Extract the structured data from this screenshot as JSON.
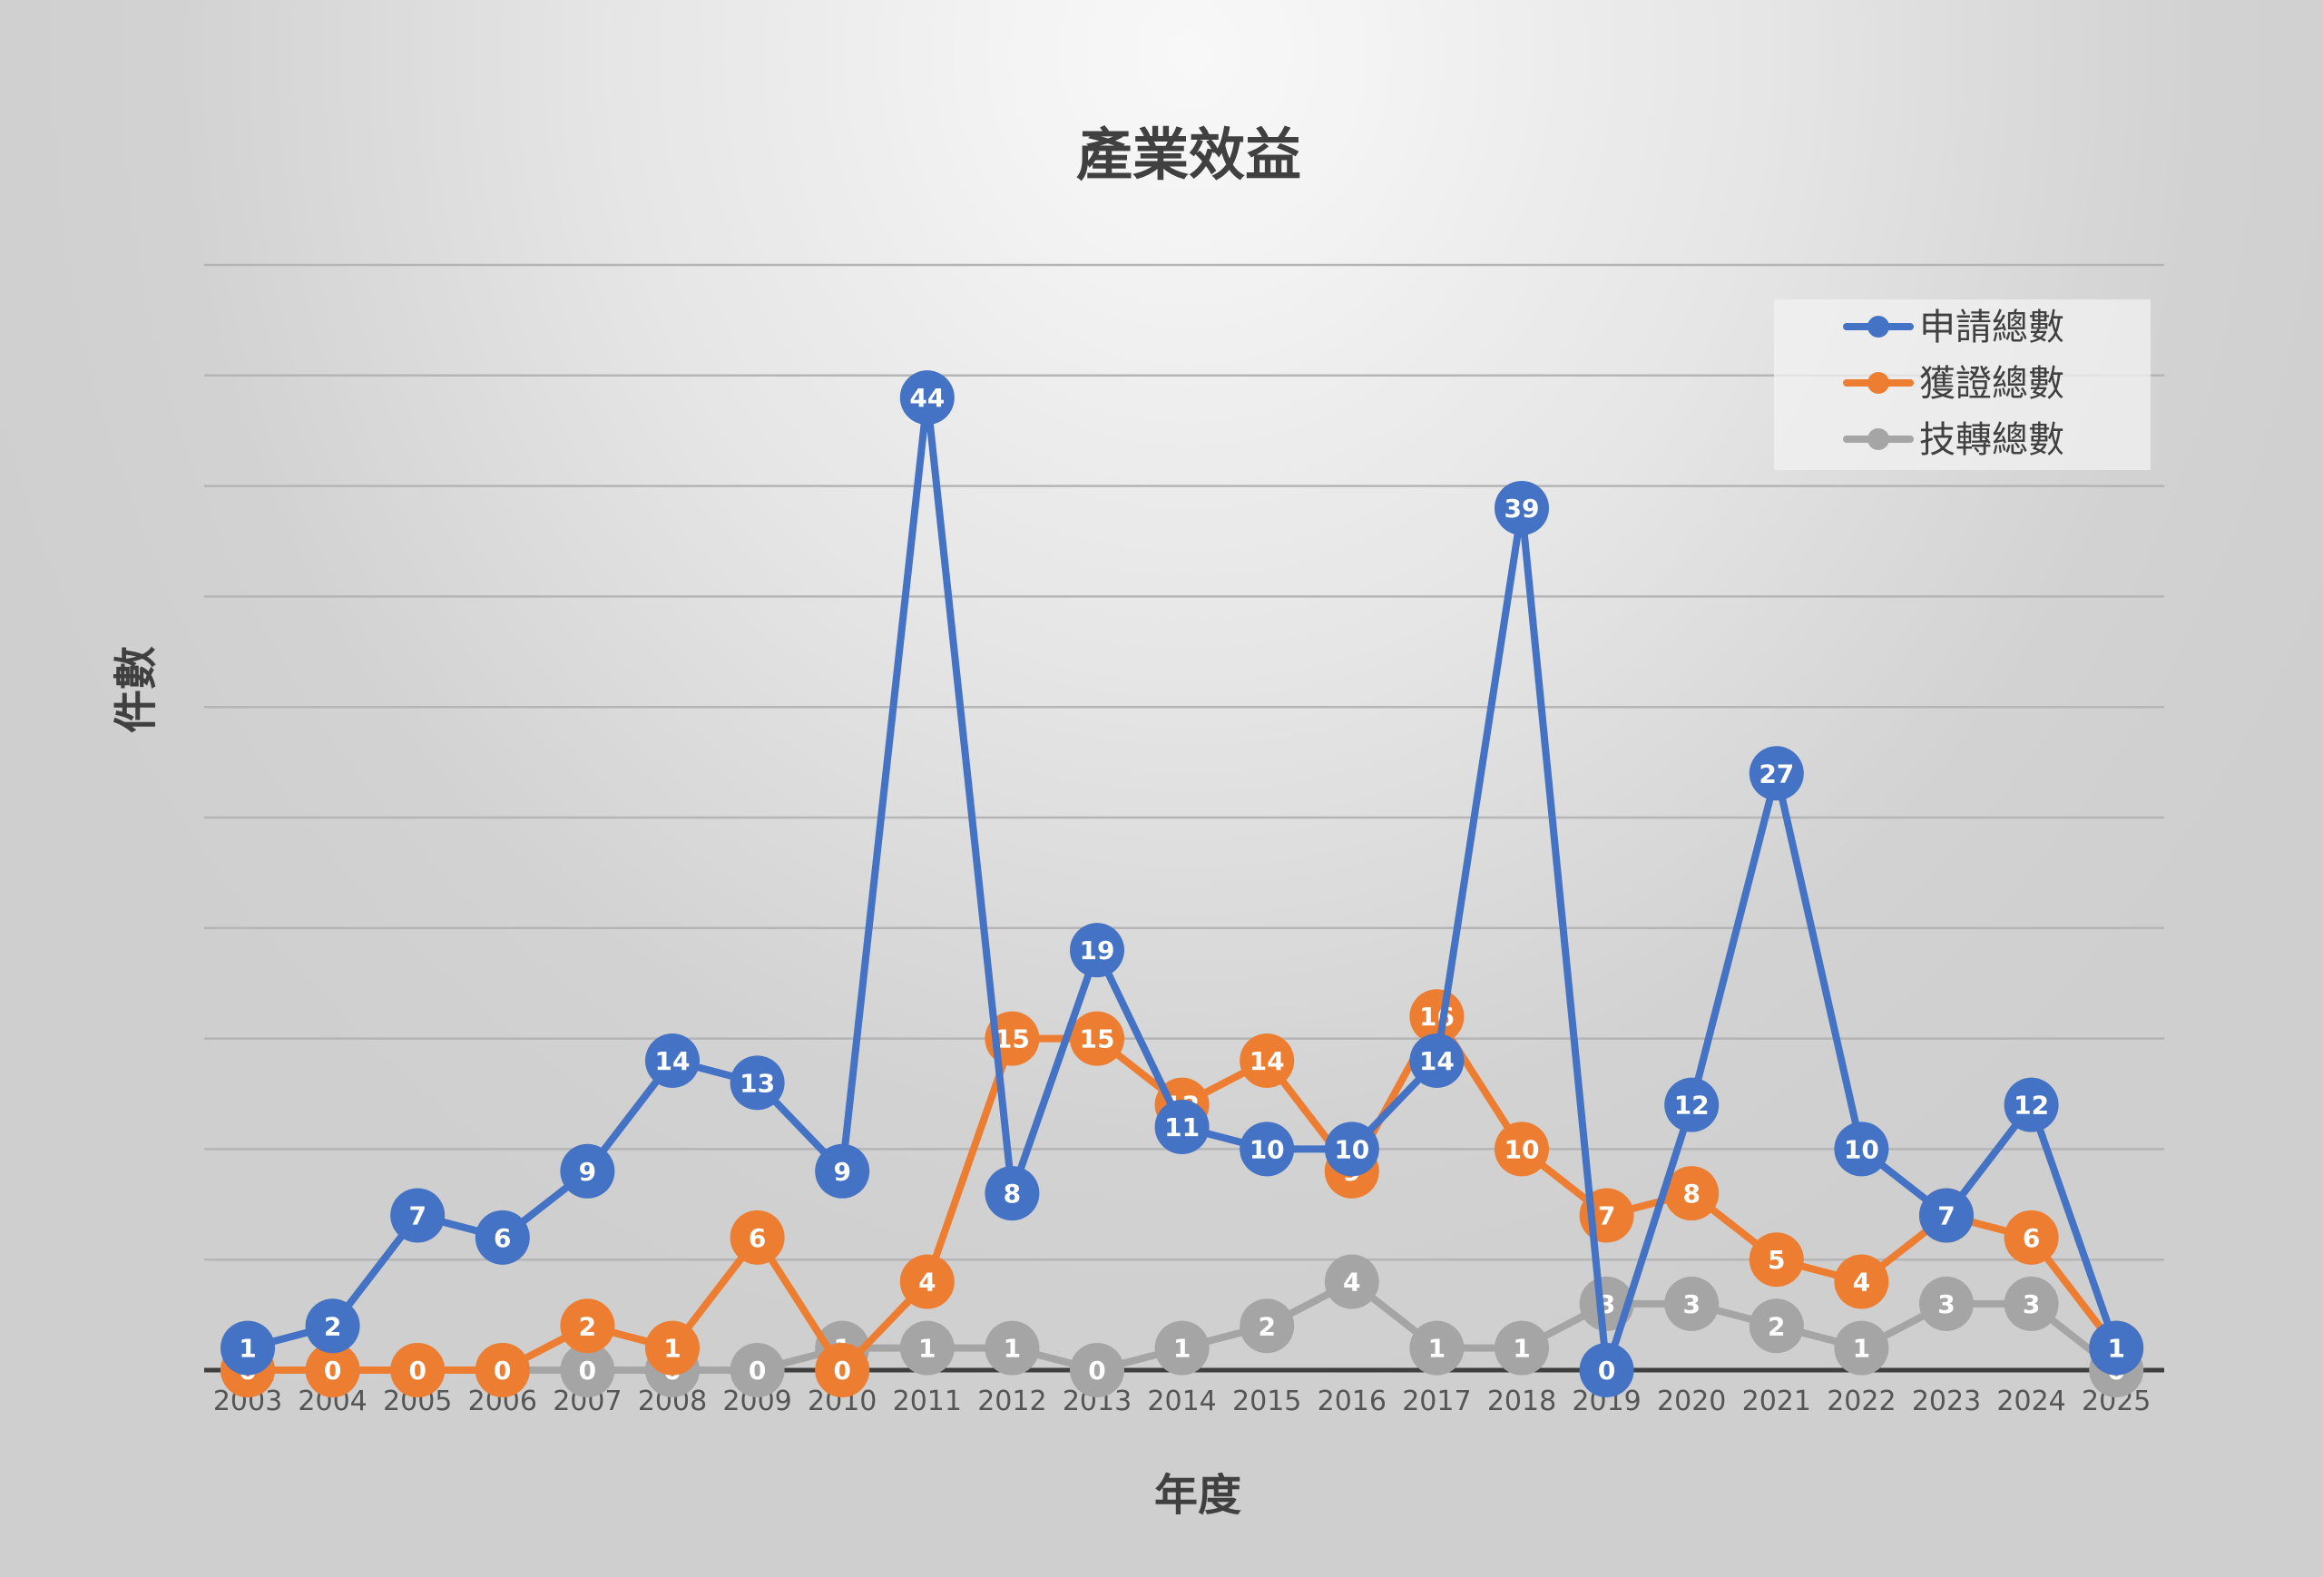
{
  "chart_data": {
    "type": "line",
    "title": "產業效益",
    "xlabel": "年度",
    "ylabel": "件數",
    "ylim": [
      0,
      50
    ],
    "grid": true,
    "legend_position": "top-right",
    "categories": [
      "2003",
      "2004",
      "2005",
      "2006",
      "2007",
      "2008",
      "2009",
      "2010",
      "2011",
      "2012",
      "2013",
      "2014",
      "2015",
      "2016",
      "2017",
      "2018",
      "2019",
      "2020",
      "2021",
      "2022",
      "2023",
      "2024",
      "2025"
    ],
    "series": [
      {
        "name": "申請總數",
        "color": "#4472C4",
        "values": [
          1,
          2,
          7,
          6,
          9,
          14,
          13,
          9,
          44,
          8,
          19,
          11,
          10,
          10,
          14,
          39,
          0,
          12,
          27,
          10,
          7,
          12,
          1
        ]
      },
      {
        "name": "獲證總數",
        "color": "#ED7D31",
        "values": [
          0,
          0,
          0,
          0,
          2,
          1,
          6,
          0,
          4,
          15,
          15,
          12,
          14,
          9,
          16,
          10,
          7,
          8,
          5,
          4,
          7,
          6,
          1
        ]
      },
      {
        "name": "技轉總數",
        "color": "#A5A5A5",
        "values": [
          0,
          0,
          0,
          0,
          0,
          0,
          0,
          1,
          1,
          1,
          0,
          1,
          2,
          4,
          1,
          1,
          3,
          3,
          2,
          1,
          3,
          3,
          0
        ]
      }
    ]
  }
}
